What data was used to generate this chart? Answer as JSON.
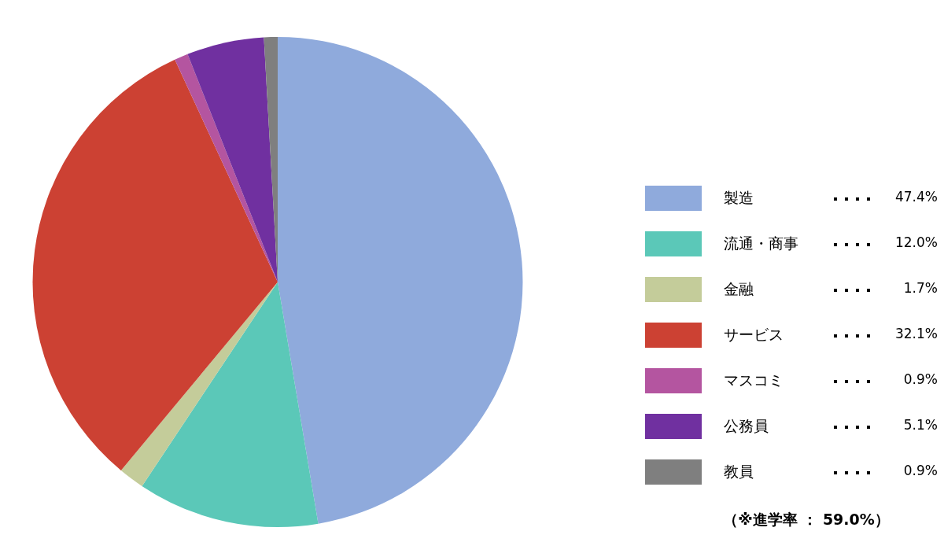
{
  "chart_data": {
    "type": "pie",
    "categories": [
      "製造",
      "流通・商事",
      "金融",
      "サービス",
      "マスコミ",
      "公務員",
      "教員"
    ],
    "values": [
      47.4,
      12.0,
      1.7,
      32.1,
      0.9,
      5.1,
      0.9
    ],
    "colors": [
      "#8faadc",
      "#5bc8b8",
      "#c4cc9a",
      "#cc4133",
      "#b455a0",
      "#7030a0",
      "#7f7f7f"
    ],
    "value_labels": [
      "47.4%",
      "12.0%",
      "1.7%",
      "32.1%",
      "0.9%",
      "5.1%",
      "0.9%"
    ],
    "legend": "right",
    "annotations": [
      "（※進学率 ： 59.0%）"
    ]
  }
}
